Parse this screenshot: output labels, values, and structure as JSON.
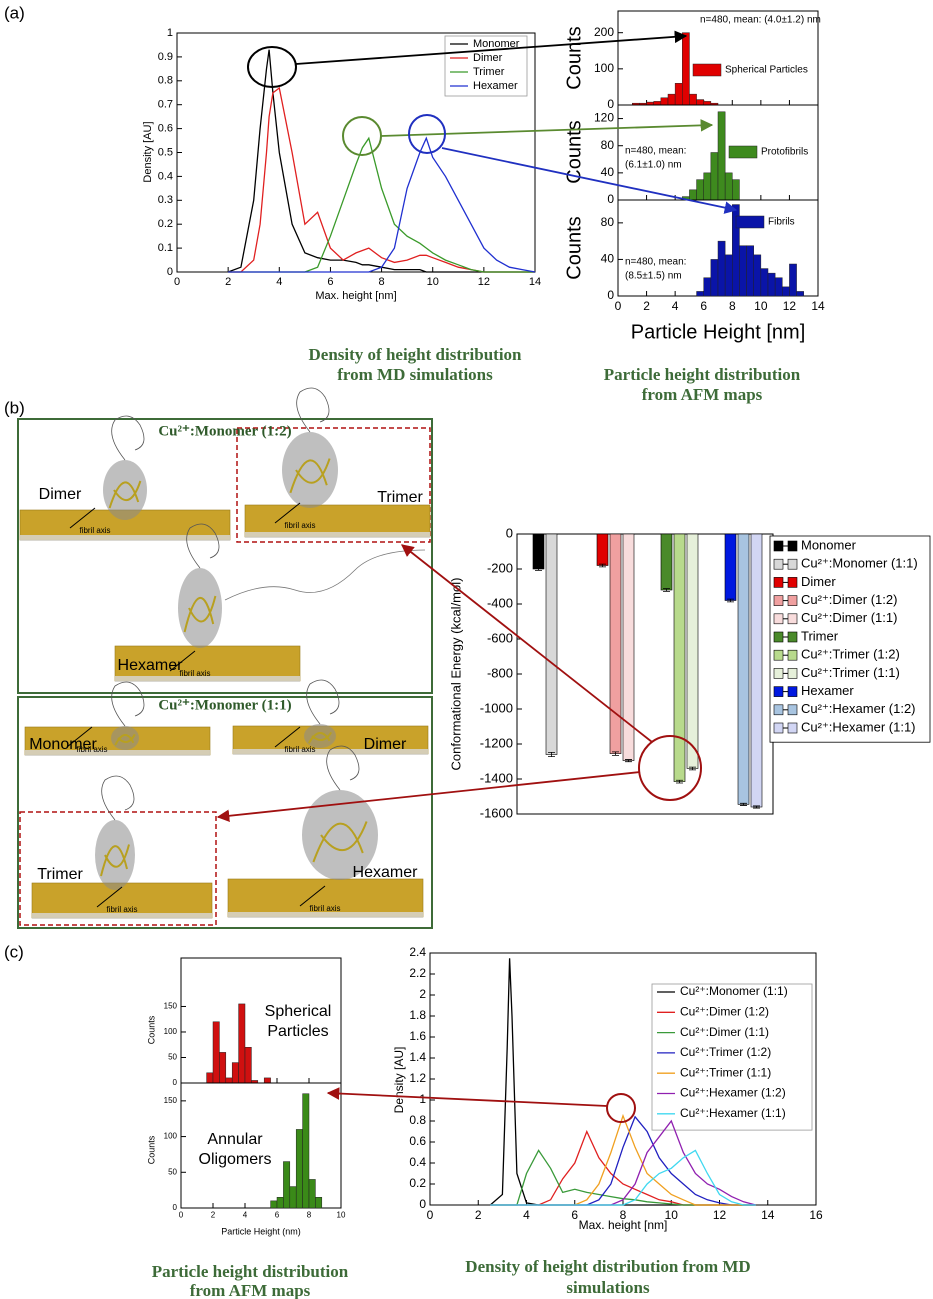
{
  "panel_labels": [
    "(a)",
    "(b)",
    "(c)"
  ],
  "captions": [
    [
      "Density of height distribution",
      "from MD simulations"
    ],
    [
      "Particle height distribution",
      "from AFM maps"
    ],
    [
      "Particle height distribution",
      "from AFM maps"
    ],
    [
      "Density of height distribution from MD",
      "simulations"
    ]
  ],
  "structures": {
    "top_title": "Cu²⁺:Monomer (1:2)",
    "top_labels": [
      "Dimer",
      "Trimer",
      "Hexamer"
    ],
    "bottom_title": "Cu²⁺:Monomer (1:1)",
    "bottom_labels": [
      "Monomer",
      "Dimer",
      "Trimer",
      "Hexamer"
    ],
    "axis_label": "fibril axis"
  },
  "chart_data": [
    {
      "type": "line",
      "xlabel": "Max. height [nm]",
      "ylabel": "Density [AU]",
      "xlim": [
        0,
        14
      ],
      "xticks": [
        0,
        2,
        4,
        6,
        8,
        10,
        12,
        14
      ],
      "ylim": [
        0,
        1
      ],
      "yticks": [
        0,
        0.1,
        0.2,
        0.3,
        0.4,
        0.5,
        0.6,
        0.7,
        0.8,
        0.9,
        1
      ],
      "x": [
        2,
        2.5,
        3,
        3.25,
        3.5,
        3.6,
        3.75,
        4,
        4.5,
        5,
        5.5,
        6,
        6.5,
        7,
        7.25,
        7.5,
        8,
        8.5,
        9,
        9.5,
        9.75,
        10,
        10.5,
        11,
        11.5,
        12,
        12.5,
        13,
        13.5,
        14
      ],
      "series": [
        {
          "name": "Monomer",
          "color": "#000000",
          "values": [
            0,
            0.02,
            0.3,
            0.6,
            0.85,
            0.93,
            0.75,
            0.5,
            0.2,
            0.08,
            0.06,
            0.05,
            0.05,
            0.04,
            0.03,
            0.03,
            0.02,
            0.01,
            0.01,
            0.01,
            0,
            0,
            0,
            0,
            0,
            0,
            0,
            0,
            0,
            0
          ]
        },
        {
          "name": "Dimer",
          "color": "#e02020",
          "values": [
            0,
            0,
            0.05,
            0.2,
            0.5,
            0.65,
            0.75,
            0.77,
            0.5,
            0.2,
            0.25,
            0.1,
            0.05,
            0.08,
            0.09,
            0.1,
            0.06,
            0.04,
            0.05,
            0.07,
            0.07,
            0.06,
            0.04,
            0.02,
            0.01,
            0,
            0,
            0,
            0,
            0
          ]
        },
        {
          "name": "Trimer",
          "color": "#3a9a2a",
          "values": [
            0,
            0,
            0,
            0,
            0,
            0,
            0,
            0,
            0,
            0,
            0.02,
            0.15,
            0.3,
            0.45,
            0.52,
            0.56,
            0.35,
            0.2,
            0.15,
            0.12,
            0.1,
            0.08,
            0.05,
            0.03,
            0.01,
            0,
            0,
            0,
            0,
            0
          ]
        },
        {
          "name": "Hexamer",
          "color": "#2030d0",
          "values": [
            0,
            0,
            0,
            0,
            0,
            0,
            0,
            0,
            0,
            0,
            0,
            0,
            0,
            0,
            0,
            0,
            0.02,
            0.1,
            0.35,
            0.5,
            0.56,
            0.48,
            0.4,
            0.3,
            0.2,
            0.1,
            0.05,
            0.02,
            0.01,
            0
          ]
        }
      ]
    },
    {
      "type": "histogram",
      "ylabel": "Counts",
      "annotation": [
        "n=480, mean: (4.0±1.2) nm"
      ],
      "show_xtick_labels": false,
      "xlim": [
        0,
        14
      ],
      "xticks": [
        0,
        2,
        4,
        6,
        8,
        10,
        12,
        14
      ],
      "ylim": [
        0,
        260
      ],
      "yticks": [
        0,
        100,
        200
      ],
      "bins": [
        1,
        1.5,
        2,
        2.5,
        3,
        3.5,
        4,
        4.5,
        5,
        5.5,
        6,
        6.5,
        7
      ],
      "series": [
        {
          "name": "Spherical Particles",
          "color": "#e00000",
          "values": [
            5,
            5,
            8,
            10,
            20,
            30,
            60,
            200,
            30,
            15,
            10,
            5
          ]
        }
      ]
    },
    {
      "type": "histogram",
      "ylabel": "Counts",
      "annotation": [
        "n=480, mean:",
        "(6.1±1.0) nm"
      ],
      "show_xtick_labels": false,
      "xlim": [
        0,
        14
      ],
      "xticks": [
        0,
        2,
        4,
        6,
        8,
        10,
        12,
        14
      ],
      "ylim": [
        0,
        140
      ],
      "yticks": [
        0,
        40,
        80,
        120
      ],
      "bins": [
        4.5,
        5,
        5.5,
        6,
        6.5,
        7,
        7.5,
        8,
        8.5
      ],
      "series": [
        {
          "name": "Protofibrils",
          "color": "#3e8a1e",
          "values": [
            5,
            15,
            30,
            40,
            70,
            130,
            40,
            30
          ]
        }
      ]
    },
    {
      "type": "histogram",
      "xlabel": "Particle Height [nm]",
      "ylabel": "Counts",
      "annotation": [
        "n=480, mean:",
        "(8.5±1.5) nm"
      ],
      "show_xtick_labels": true,
      "xlim": [
        0,
        14
      ],
      "xticks": [
        0,
        2,
        4,
        6,
        8,
        10,
        12,
        14
      ],
      "ylim": [
        0,
        105
      ],
      "yticks": [
        0,
        40,
        80
      ],
      "bins": [
        5.5,
        6,
        6.5,
        7,
        7.5,
        8,
        8.5,
        9,
        9.5,
        10,
        10.5,
        11,
        11.5,
        12,
        12.5,
        13
      ],
      "series": [
        {
          "name": "Fibrils",
          "color": "#0a14a8",
          "values": [
            5,
            20,
            40,
            60,
            45,
            100,
            55,
            55,
            45,
            30,
            25,
            20,
            10,
            35,
            5
          ]
        }
      ]
    },
    {
      "type": "bar",
      "ylabel": "Conformational Energy (kcal/mol)",
      "categories": [
        null,
        null,
        null,
        null
      ],
      "ylim": [
        -1600,
        0
      ],
      "yticks": [
        0,
        -200,
        -400,
        -600,
        -800,
        -1000,
        -1200,
        -1400,
        -1600
      ],
      "series": [
        {
          "name": "Monomer",
          "color": "#000000",
          "values": [
            -200,
            null,
            null,
            null
          ],
          "errors": [
            8,
            null,
            null,
            null
          ]
        },
        {
          "name": "Cu²⁺:Monomer (1:1)",
          "color": "#d8d8d8",
          "values": [
            -1260,
            null,
            null,
            null
          ],
          "errors": [
            12,
            null,
            null,
            null
          ]
        },
        {
          "name": "Dimer",
          "color": "#e00000",
          "values": [
            null,
            -180,
            null,
            null
          ],
          "errors": [
            null,
            8,
            null,
            null
          ]
        },
        {
          "name": "Cu²⁺:Dimer (1:2)",
          "color": "#f0a0a0",
          "values": [
            null,
            -1255,
            null,
            null
          ],
          "errors": [
            null,
            10,
            null,
            null
          ]
        },
        {
          "name": "Cu²⁺:Dimer (1:1)",
          "color": "#f8dcdc",
          "values": [
            null,
            -1295,
            null,
            null
          ],
          "errors": [
            null,
            6,
            null,
            null
          ]
        },
        {
          "name": "Trimer",
          "color": "#4a8a2a",
          "values": [
            null,
            null,
            -320,
            null
          ],
          "errors": [
            null,
            null,
            8,
            null
          ]
        },
        {
          "name": "Cu²⁺:Trimer (1:2)",
          "color": "#b8da8c",
          "values": [
            null,
            null,
            -1415,
            null
          ],
          "errors": [
            null,
            null,
            8,
            null
          ]
        },
        {
          "name": "Cu²⁺:Trimer (1:1)",
          "color": "#e6f0da",
          "values": [
            null,
            null,
            -1340,
            null
          ],
          "errors": [
            null,
            null,
            8,
            null
          ]
        },
        {
          "name": "Hexamer",
          "color": "#0018e0",
          "values": [
            null,
            null,
            null,
            -380
          ],
          "errors": [
            null,
            null,
            null,
            8
          ]
        },
        {
          "name": "Cu²⁺:Hexamer (1:2)",
          "color": "#a8c4e0",
          "values": [
            null,
            null,
            null,
            -1545
          ],
          "errors": [
            null,
            null,
            null,
            6
          ]
        },
        {
          "name": "Cu²⁺:Hexamer (1:1)",
          "color": "#d2d6f4",
          "values": [
            null,
            null,
            null,
            -1560
          ],
          "errors": [
            null,
            null,
            null,
            6
          ]
        }
      ]
    },
    {
      "type": "histogram",
      "ylabel": "Counts",
      "annotation": [
        "Spherical",
        "Particles"
      ],
      "show_xtick_labels": false,
      "xlim": [
        0,
        10
      ],
      "xticks": [
        0,
        2,
        4,
        6,
        8,
        10
      ],
      "ylim": [
        0,
        245
      ],
      "yticks": [
        0,
        50,
        100,
        150
      ],
      "bins": [
        1.6,
        2,
        2.4,
        2.8,
        3.2,
        3.6,
        4,
        4.4,
        4.8,
        5.2,
        5.6
      ],
      "series": [
        {
          "name": null,
          "color": "#d01010",
          "values": [
            20,
            120,
            60,
            10,
            40,
            155,
            70,
            5,
            0,
            10
          ]
        }
      ]
    },
    {
      "type": "histogram",
      "xlabel": "Particle Height (nm)",
      "ylabel": "Counts",
      "annotation": [
        "Annular",
        "Oligomers"
      ],
      "show_xtick_labels": true,
      "xlim": [
        0,
        10
      ],
      "xticks": [
        0,
        2,
        4,
        6,
        8,
        10
      ],
      "ylim": [
        0,
        175
      ],
      "yticks": [
        0,
        50,
        100,
        150
      ],
      "bins": [
        5.6,
        6,
        6.4,
        6.8,
        7.2,
        7.6,
        8,
        8.4,
        8.8
      ],
      "series": [
        {
          "name": null,
          "color": "#3a8a18",
          "values": [
            10,
            15,
            65,
            30,
            110,
            160,
            40,
            15
          ]
        }
      ]
    },
    {
      "type": "line",
      "xlabel": "Max. height [nm]",
      "ylabel": "Density [AU]",
      "xlim": [
        0,
        16
      ],
      "xticks": [
        0,
        2,
        4,
        6,
        8,
        10,
        12,
        14,
        16
      ],
      "ylim": [
        0,
        2.4
      ],
      "yticks": [
        0,
        0.2,
        0.4,
        0.6,
        0.8,
        1,
        1.2,
        1.4,
        1.6,
        1.8,
        2,
        2.2,
        2.4
      ],
      "x": [
        2.5,
        3,
        3.2,
        3.3,
        3.4,
        3.6,
        4,
        4.5,
        5,
        5.5,
        6,
        6.5,
        7,
        7.5,
        8,
        8.5,
        9,
        9.5,
        10,
        10.5,
        11,
        11.5,
        12,
        12.5,
        13,
        13.5
      ],
      "series": [
        {
          "name": "Cu²⁺:Monomer (1:1)",
          "color": "#000000",
          "values": [
            0,
            0.1,
            1.5,
            2.35,
            1.8,
            0.3,
            0.02,
            0,
            0,
            0,
            0,
            0,
            0,
            0,
            0,
            0,
            0,
            0,
            0,
            0,
            0,
            0,
            0,
            0,
            0,
            0
          ]
        },
        {
          "name": "Cu²⁺:Dimer (1:2)",
          "color": "#e02020",
          "values": [
            0,
            0,
            0,
            0,
            0,
            0,
            0,
            0,
            0.05,
            0.25,
            0.4,
            0.7,
            0.45,
            0.3,
            0.2,
            0.15,
            0.1,
            0.05,
            0.03,
            0,
            0,
            0,
            0,
            0,
            0,
            0
          ]
        },
        {
          "name": "Cu²⁺:Dimer (1:1)",
          "color": "#3a9a3a",
          "values": [
            0,
            0,
            0,
            0,
            0,
            0,
            0.3,
            0.52,
            0.35,
            0.12,
            0.15,
            0.12,
            0.1,
            0.08,
            0.06,
            0.05,
            0.03,
            0.02,
            0.01,
            0,
            0,
            0,
            0,
            0,
            0,
            0
          ]
        },
        {
          "name": "Cu²⁺:Trimer (1:2)",
          "color": "#2020c0",
          "values": [
            0,
            0,
            0,
            0,
            0,
            0,
            0,
            0,
            0,
            0,
            0,
            0,
            0.05,
            0.2,
            0.55,
            0.84,
            0.7,
            0.45,
            0.3,
            0.2,
            0.1,
            0.05,
            0.02,
            0,
            0,
            0
          ]
        },
        {
          "name": "Cu²⁺:Trimer (1:1)",
          "color": "#f0a020",
          "values": [
            0,
            0,
            0,
            0,
            0,
            0,
            0,
            0,
            0,
            0,
            0,
            0.05,
            0.2,
            0.5,
            0.85,
            0.55,
            0.3,
            0.2,
            0.1,
            0.05,
            0,
            0,
            0,
            0,
            0,
            0
          ]
        },
        {
          "name": "Cu²⁺:Hexamer (1:2)",
          "color": "#9020b0",
          "values": [
            0,
            0,
            0,
            0,
            0,
            0,
            0,
            0,
            0,
            0,
            0,
            0,
            0,
            0,
            0.05,
            0.2,
            0.5,
            0.65,
            0.8,
            0.5,
            0.3,
            0.2,
            0.15,
            0.08,
            0.03,
            0
          ]
        },
        {
          "name": "Cu²⁺:Hexamer (1:1)",
          "color": "#40d8f0",
          "values": [
            0,
            0,
            0,
            0,
            0,
            0,
            0,
            0,
            0,
            0,
            0,
            0,
            0,
            0,
            0,
            0.05,
            0.2,
            0.3,
            0.35,
            0.45,
            0.52,
            0.3,
            0.1,
            0.03,
            0,
            0
          ]
        }
      ]
    }
  ]
}
